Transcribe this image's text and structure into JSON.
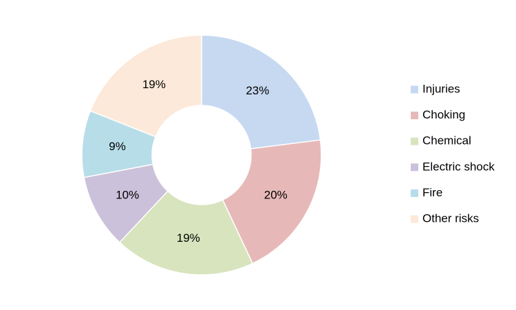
{
  "chart_data": {
    "type": "donut",
    "categories": [
      "Injuries",
      "Choking",
      "Chemical",
      "Electric shock",
      "Fire",
      "Other risks"
    ],
    "values": [
      23,
      20,
      19,
      10,
      9,
      19
    ],
    "value_labels": [
      "23%",
      "20%",
      "19%",
      "10%",
      "9%",
      "19%"
    ],
    "colors": [
      "#c6d9f1",
      "#e6b9b8",
      "#d7e4bd",
      "#ccc1da",
      "#b7dde8",
      "#fde9d9"
    ],
    "legend": "right"
  }
}
